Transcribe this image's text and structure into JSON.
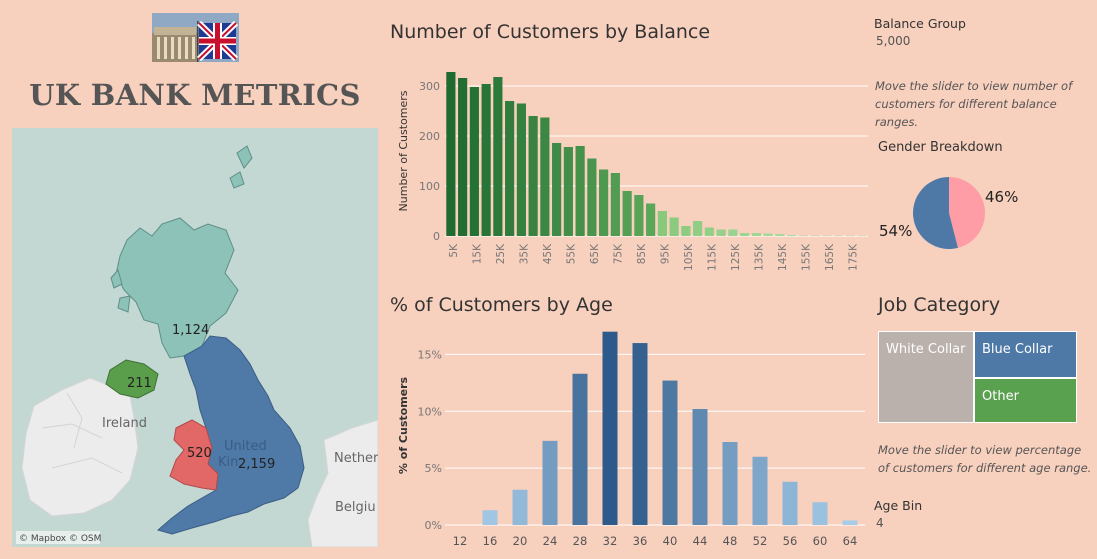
{
  "header": {
    "title": "UK BANK METRICS"
  },
  "map": {
    "attribution": "© Mapbox © OSM",
    "base_labels": {
      "ireland": "Ireland",
      "netherlands": "Nether",
      "belgium": "Belgiu",
      "uk": "United",
      "uk2": "Kin"
    },
    "regions": [
      {
        "name": "Scotland",
        "value": "1,124",
        "color": "#8cc2b8"
      },
      {
        "name": "Northern Ireland",
        "value": "211",
        "color": "#5a9e4c"
      },
      {
        "name": "Wales",
        "value": "520",
        "color": "#e26767"
      },
      {
        "name": "England",
        "value": "2,159",
        "color": "#4f79a7"
      }
    ]
  },
  "balance_chart": {
    "title": "Number of Customers by Balance",
    "chart_data": {
      "type": "bar",
      "title": "Number of Customers by Balance",
      "ylabel": "Number of Customers",
      "xlabel": "",
      "ylim": [
        0,
        340
      ],
      "yticks": [
        0,
        100,
        200,
        300
      ],
      "xtick_labels": [
        "5K",
        "15K",
        "25K",
        "35K",
        "45K",
        "55K",
        "65K",
        "75K",
        "85K",
        "95K",
        "105K",
        "115K",
        "125K",
        "135K",
        "145K",
        "155K",
        "165K",
        "175K"
      ],
      "values": [
        328,
        316,
        298,
        304,
        318,
        270,
        265,
        240,
        237,
        186,
        178,
        180,
        155,
        133,
        126,
        90,
        82,
        65,
        50,
        37,
        20,
        30,
        17,
        13,
        13,
        6,
        6,
        5,
        4,
        2,
        1,
        1,
        1,
        1,
        1,
        1
      ]
    }
  },
  "age_chart": {
    "title": "% of Customers by Age",
    "chart_data": {
      "type": "bar",
      "title": "% of Customers by Age",
      "ylabel": "% of Customers",
      "xlabel": "",
      "ylim": [
        0,
        17.5
      ],
      "yticks": [
        "0%",
        "5%",
        "10%",
        "15%"
      ],
      "categories": [
        "12",
        "16",
        "20",
        "24",
        "28",
        "32",
        "36",
        "40",
        "44",
        "48",
        "52",
        "56",
        "60",
        "64"
      ],
      "values": [
        0,
        1.3,
        3.1,
        7.4,
        13.3,
        17.0,
        16.0,
        12.7,
        10.2,
        7.3,
        6.0,
        3.8,
        2.0,
        0.4
      ]
    }
  },
  "balance_group": {
    "label": "Balance Group",
    "value": "5,000"
  },
  "balance_note": "Move the slider to view  number of customers for different balance ranges.",
  "gender": {
    "title": "Gender Breakdown",
    "chart_data": {
      "type": "pie",
      "slices": [
        {
          "label": "46%",
          "value": 46,
          "color": "#ff9da7"
        },
        {
          "label": "54%",
          "value": 54,
          "color": "#4e79a7"
        }
      ]
    }
  },
  "job": {
    "title": "Job Category",
    "items": [
      {
        "label": "White Collar",
        "color": "#bab0ac"
      },
      {
        "label": "Blue Collar",
        "color": "#4e79a7"
      },
      {
        "label": "Other",
        "color": "#59a14f"
      }
    ]
  },
  "age_note": "Move the slider to view  percentage of customers for different age range.",
  "age_bin": {
    "label": "Age Bin",
    "value": "4"
  }
}
